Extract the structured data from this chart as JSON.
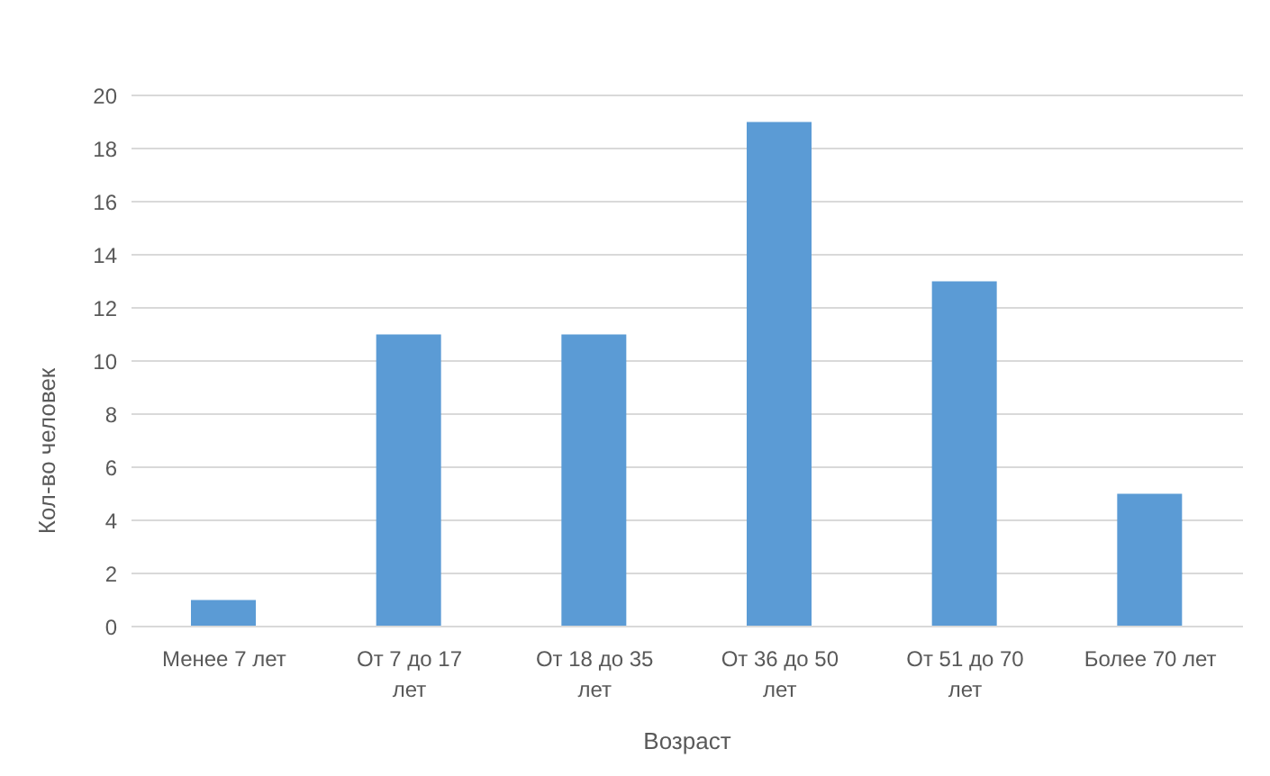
{
  "chart_data": {
    "type": "bar",
    "xlabel": "Возраст",
    "ylabel": "Кол-во человек",
    "categories": [
      "Менее 7 лет",
      "От 7 до 17 лет",
      "От 18 до 35 лет",
      "От 36 до 50 лет",
      "От 51 до 70 лет",
      "Более 70 лет"
    ],
    "values": [
      1,
      11,
      11,
      19,
      13,
      5
    ],
    "color": "#5b9bd5",
    "ylim": [
      0,
      20
    ],
    "yticks": [
      0,
      2,
      4,
      6,
      8,
      10,
      12,
      14,
      16,
      18,
      20
    ],
    "grid": "y"
  }
}
